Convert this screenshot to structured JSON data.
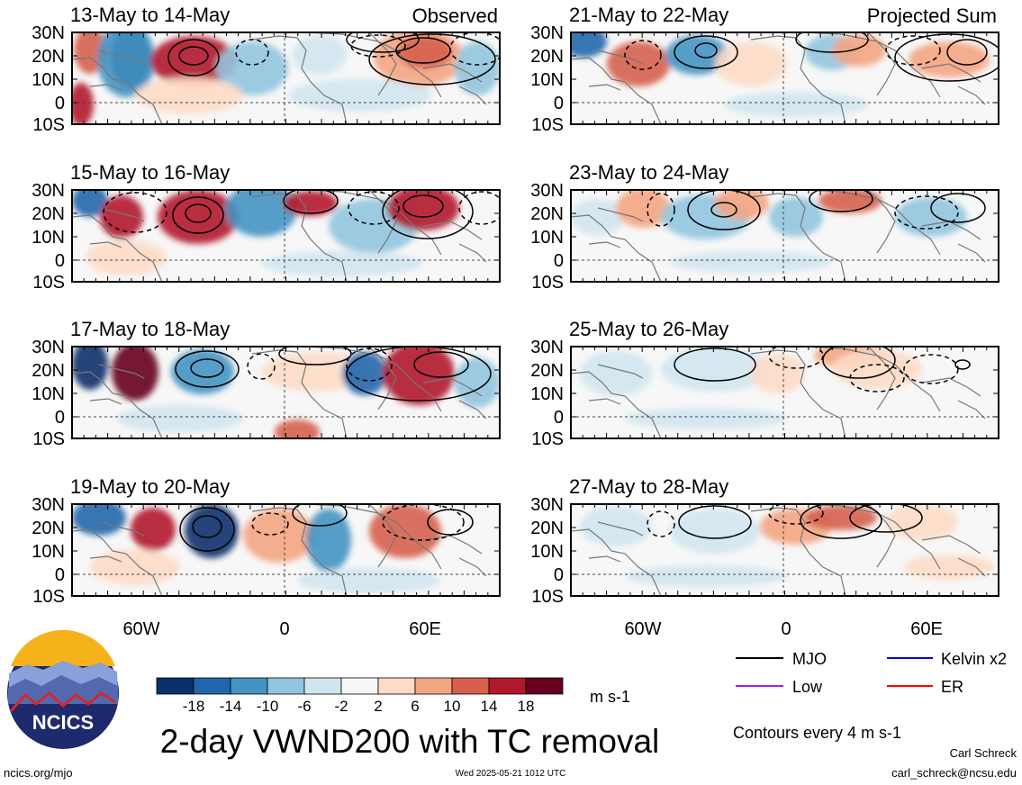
{
  "panels": {
    "left": [
      {
        "title": "13-May to 14-May",
        "tag": "Observed"
      },
      {
        "title": "15-May to 16-May",
        "tag": ""
      },
      {
        "title": "17-May to 18-May",
        "tag": ""
      },
      {
        "title": "19-May to 20-May",
        "tag": ""
      }
    ],
    "right": [
      {
        "title": "21-May to 22-May",
        "tag": "Projected Sum"
      },
      {
        "title": "23-May to 24-May",
        "tag": ""
      },
      {
        "title": "25-May to 26-May",
        "tag": ""
      },
      {
        "title": "27-May to 28-May",
        "tag": ""
      }
    ]
  },
  "lat_ticks": [
    "30N",
    "20N",
    "10N",
    "0",
    "10S"
  ],
  "lon_ticks": [
    "60W",
    "0",
    "60E"
  ],
  "colorbar": {
    "ticks": [
      "-18",
      "-14",
      "-10",
      "-6",
      "-2",
      "2",
      "6",
      "10",
      "14",
      "18"
    ],
    "colors": [
      "#08306b",
      "#2166ac",
      "#4393c3",
      "#92c5de",
      "#d1e5f0",
      "#f7f7f7",
      "#fddbc7",
      "#f4a582",
      "#d6604d",
      "#b2182b",
      "#67001f"
    ],
    "unit": "m s-1"
  },
  "legend": [
    {
      "label": "MJO",
      "color": "#000000"
    },
    {
      "label": "Kelvin x2",
      "color": "#0000ff"
    },
    {
      "label": "Low",
      "color": "#a020f0"
    },
    {
      "label": "ER",
      "color": "#ff0000"
    }
  ],
  "contour_note": "Contours every 4 m s-1",
  "main_title": "2-day VWND200 with TC removal",
  "logo_text": "NCICS",
  "footer": {
    "url": "ncics.org/mjo",
    "timestamp": "Wed 2025-05-21 1012 UTC",
    "author": "Carl Schreck",
    "email": "carl_schreck@ncsu.edu"
  }
}
